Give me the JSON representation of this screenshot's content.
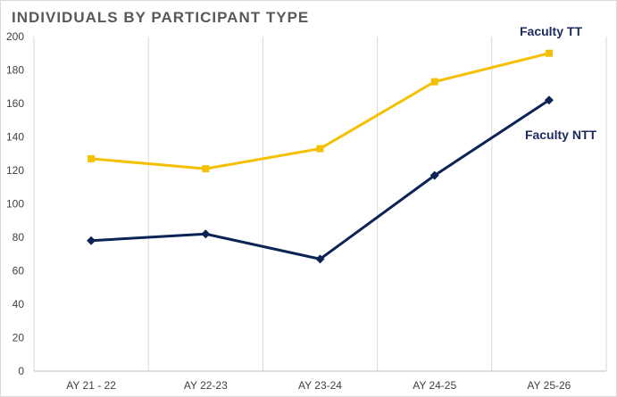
{
  "chart_data": {
    "type": "line",
    "title": "INDIVIDUALS BY PARTICIPANT TYPE",
    "categories": [
      "AY 21 - 22",
      "AY 22-23",
      "AY 23-24",
      "AY 24-25",
      "AY 25-26"
    ],
    "series": [
      {
        "name": "Faculty TT",
        "values": [
          127,
          121,
          133,
          173,
          190
        ],
        "color": "#f5c000",
        "marker": "square"
      },
      {
        "name": "Faculty NTT",
        "values": [
          78,
          82,
          67,
          117,
          162
        ],
        "color": "#0c2356",
        "marker": "diamond"
      }
    ],
    "ylim": [
      0,
      200
    ],
    "yticks": [
      0,
      20,
      40,
      60,
      80,
      100,
      120,
      140,
      160,
      180,
      200
    ],
    "grid": "vertical"
  }
}
